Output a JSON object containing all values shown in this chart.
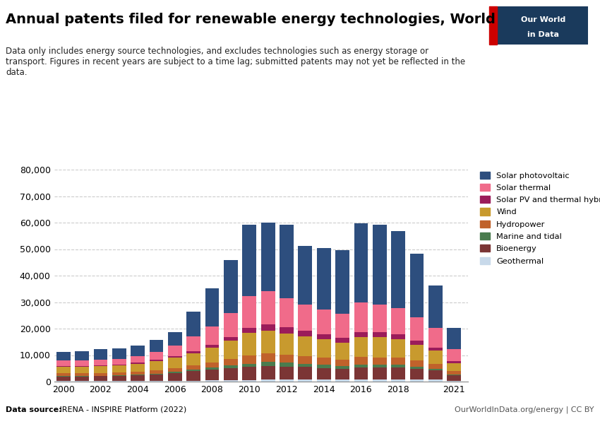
{
  "title": "Annual patents filed for renewable energy technologies, World",
  "subtitle": "Data only includes energy source technologies, and excludes technologies such as energy storage or\ntransport. Figures in recent years are subject to a time lag; submitted patents may not yet be reflected in the\ndata.",
  "datasource_bold": "Data source:",
  "datasource_rest": " IRENA - INSPIRE Platform (2022)",
  "owid_url": "OurWorldInData.org/energy | CC BY",
  "years": [
    2000,
    2001,
    2002,
    2003,
    2004,
    2005,
    2006,
    2007,
    2008,
    2009,
    2010,
    2011,
    2012,
    2013,
    2014,
    2015,
    2016,
    2017,
    2018,
    2019,
    2020,
    2021
  ],
  "categories": [
    "Geothermal",
    "Bioenergy",
    "Marine and tidal",
    "Hydropower",
    "Wind",
    "Solar PV and thermal hybrid",
    "Solar thermal",
    "Solar photovoltaic"
  ],
  "colors": [
    "#c8d9ea",
    "#7b3535",
    "#4a7c4e",
    "#c0622b",
    "#c89a2e",
    "#9b1c5a",
    "#f06b8a",
    "#2d4e7e"
  ],
  "data": {
    "Geothermal": [
      200,
      200,
      200,
      200,
      200,
      200,
      300,
      400,
      500,
      600,
      600,
      700,
      700,
      700,
      700,
      700,
      800,
      800,
      800,
      800,
      700,
      400
    ],
    "Bioenergy": [
      1800,
      1800,
      1900,
      2000,
      2200,
      2500,
      3000,
      3500,
      4000,
      4500,
      5000,
      5200,
      5000,
      4800,
      4500,
      4200,
      4500,
      4500,
      4500,
      4000,
      3500,
      2000
    ],
    "Marine and tidal": [
      100,
      100,
      100,
      100,
      200,
      300,
      400,
      600,
      800,
      1000,
      1200,
      1500,
      1400,
      1300,
      1200,
      1000,
      1200,
      1200,
      1100,
      900,
      700,
      400
    ],
    "Hydropower": [
      1000,
      1000,
      1100,
      1100,
      1200,
      1400,
      1500,
      1700,
      2000,
      2500,
      3000,
      3200,
      3000,
      2800,
      2600,
      2400,
      2800,
      2700,
      2600,
      2200,
      1800,
      1200
    ],
    "Wind": [
      2500,
      2500,
      2600,
      2700,
      2900,
      3300,
      3800,
      4500,
      5500,
      7000,
      8500,
      8500,
      8000,
      7500,
      7000,
      6500,
      7500,
      7500,
      7000,
      6000,
      5000,
      3000
    ],
    "Solar PV and thermal hybrid": [
      300,
      300,
      300,
      350,
      400,
      500,
      600,
      800,
      1000,
      1200,
      2000,
      2500,
      2500,
      2000,
      1800,
      1700,
      2000,
      2000,
      1800,
      1500,
      1200,
      700
    ],
    "Solar thermal": [
      2000,
      2100,
      2200,
      2200,
      2500,
      3000,
      4000,
      5500,
      7000,
      9000,
      12000,
      12500,
      11000,
      10000,
      9500,
      9000,
      11000,
      10500,
      10000,
      9000,
      7500,
      4500
    ],
    "Solar photovoltaic": [
      3200,
      3500,
      4000,
      4000,
      4000,
      4500,
      5000,
      9500,
      14500,
      20000,
      27000,
      26000,
      27500,
      22000,
      23000,
      24000,
      30000,
      30000,
      29000,
      24000,
      16000,
      8000
    ]
  },
  "ylim": [
    0,
    80000
  ],
  "yticks": [
    0,
    10000,
    20000,
    30000,
    40000,
    50000,
    60000,
    70000,
    80000
  ],
  "background_color": "#ffffff",
  "grid_color": "#cccccc",
  "logo_bg_color": "#1a3a5c",
  "logo_red_color": "#cc0000"
}
